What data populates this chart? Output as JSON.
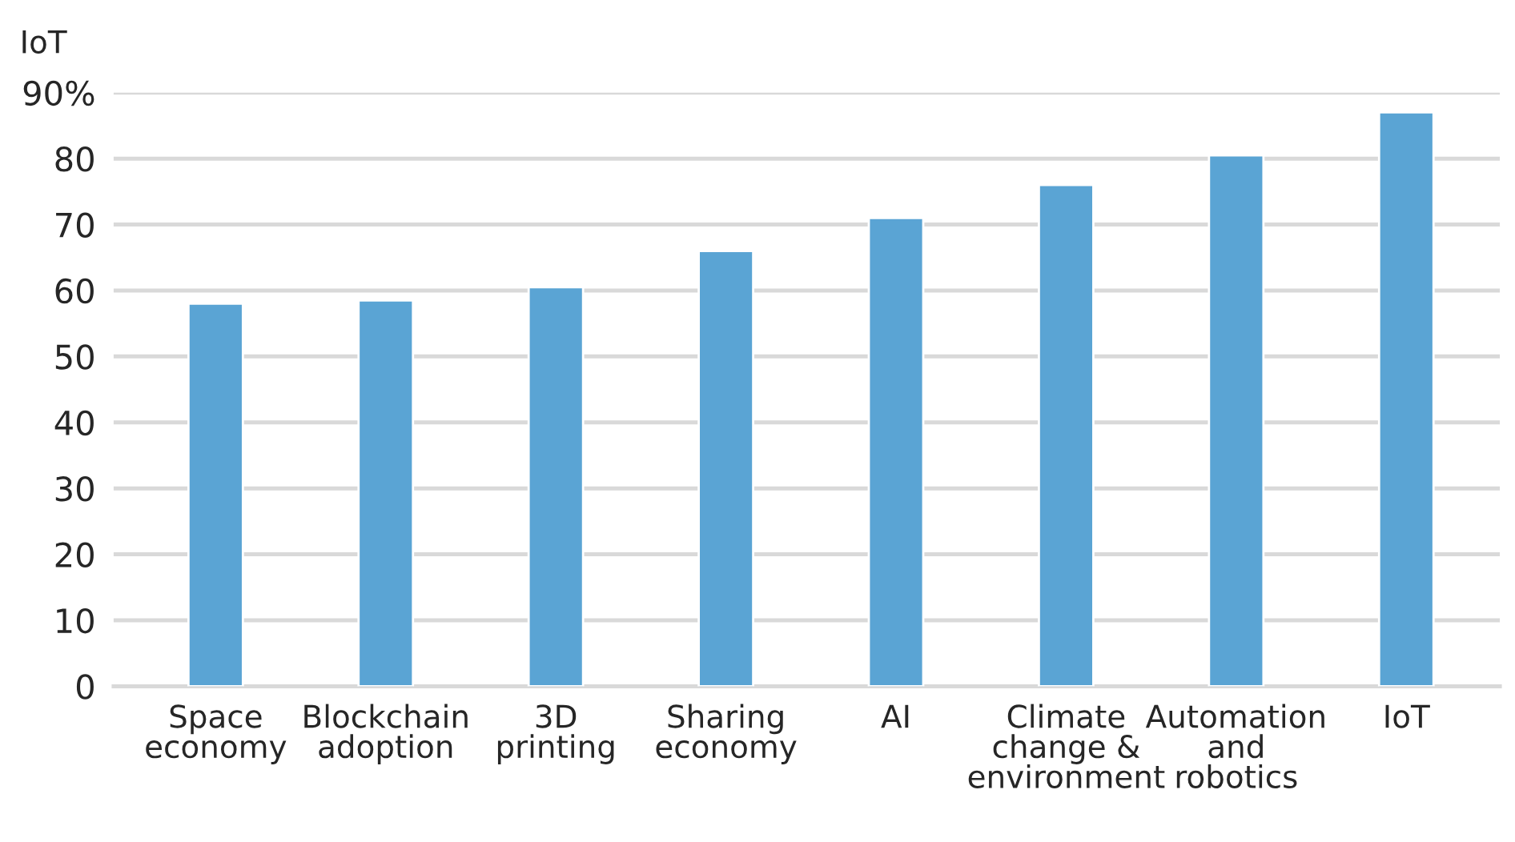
{
  "chart_data": {
    "type": "bar",
    "title": "IoT",
    "categories": [
      "Space\neconomy",
      "Blockchain\nadoption",
      "3D\nprinting",
      "Sharing\neconomy",
      "AI",
      "Climate\nchange &\nenvironment",
      "Automation\nand\nrobotics",
      "IoT"
    ],
    "values": [
      58,
      58.5,
      60.5,
      66,
      71,
      76,
      80.5,
      87
    ],
    "color": "#5aa4d4",
    "ylim": [
      0,
      90
    ],
    "yticks": [
      0,
      10,
      20,
      30,
      40,
      50,
      60,
      70,
      80,
      {
        "value": 90,
        "label": "90%"
      }
    ],
    "grid": "y"
  }
}
